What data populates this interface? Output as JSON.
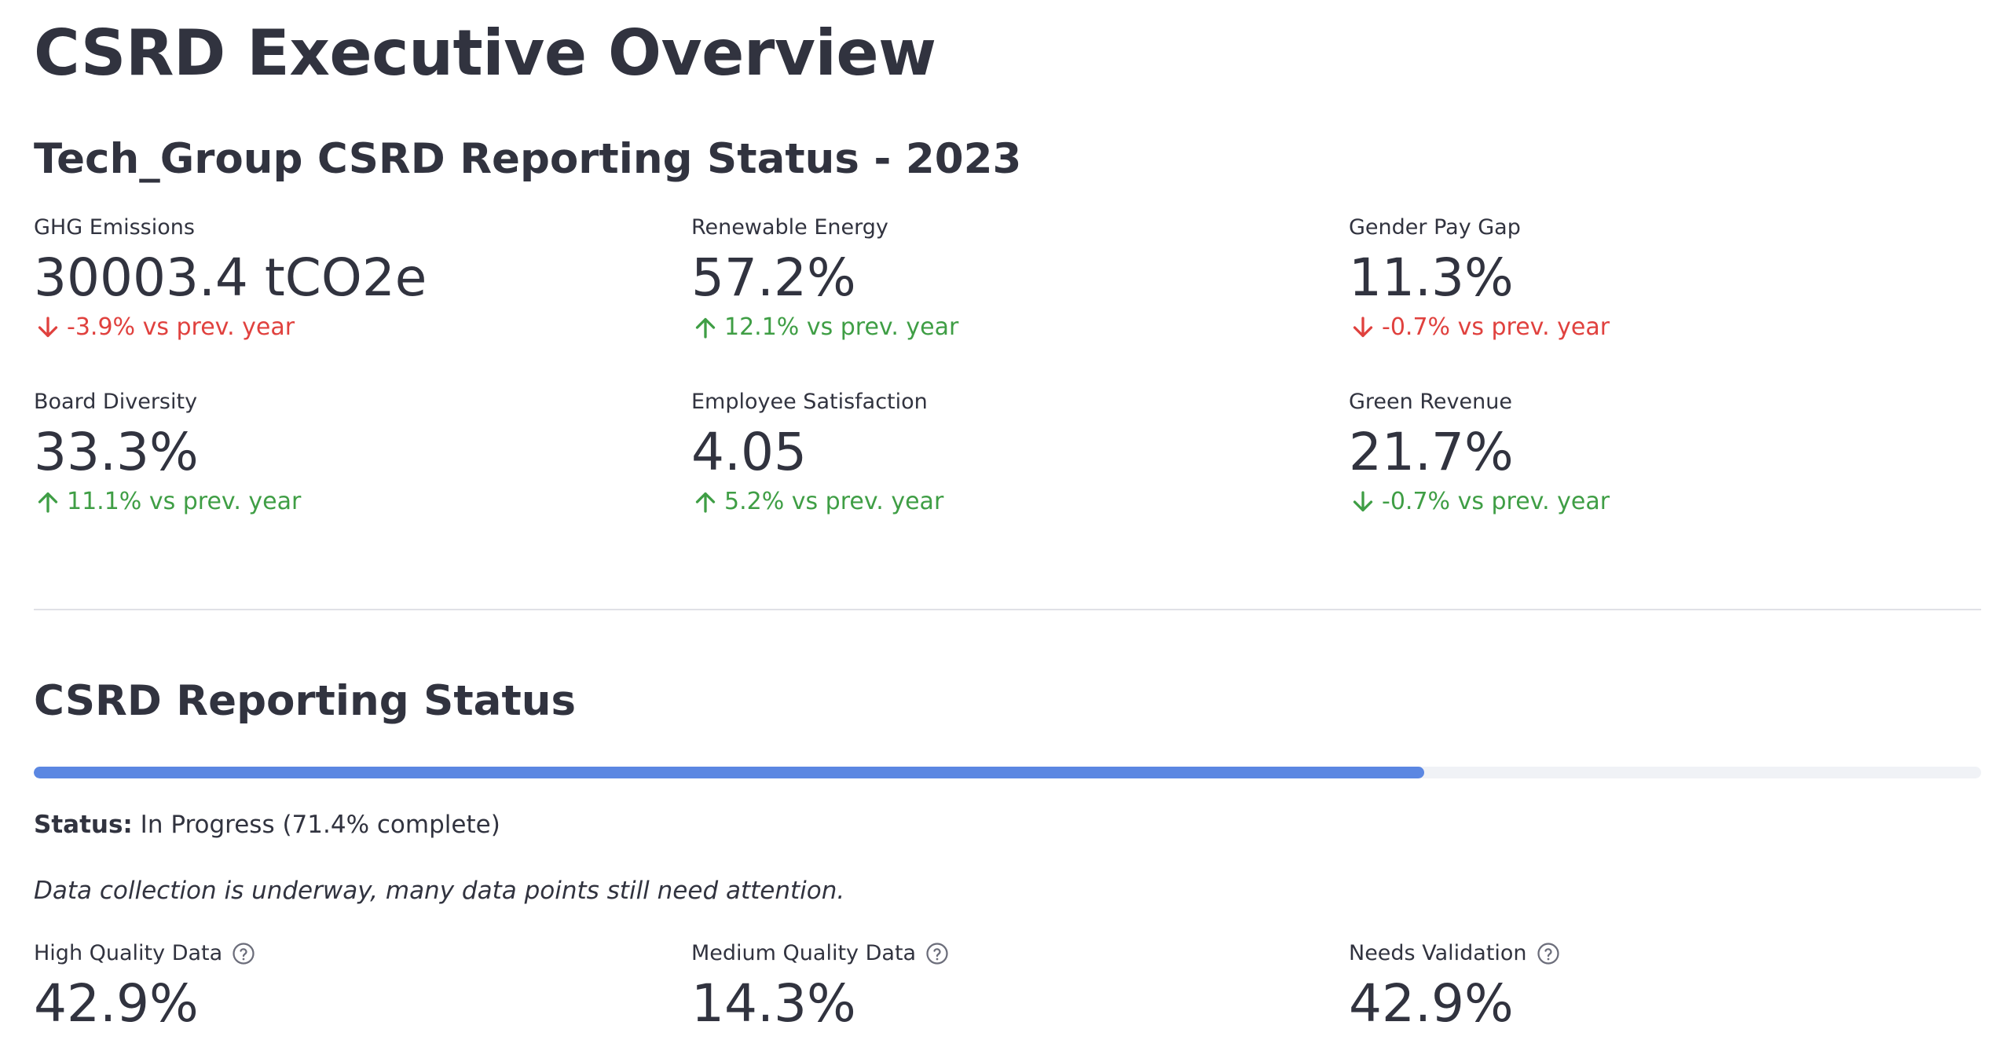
{
  "page": {
    "title": "CSRD Executive Overview",
    "subtitle": "Tech_Group CSRD Reporting Status - 2023"
  },
  "colors": {
    "text": "#31333f",
    "positive": "#3f9e45",
    "negative": "#e0413e",
    "progress_fill": "#5b87e2",
    "progress_track": "#f0f2f6",
    "divider": "#e0e1e6"
  },
  "metrics": [
    {
      "label": "GHG Emissions",
      "value": "30003.4 tCO2e",
      "delta": "-3.9% vs prev. year",
      "direction": "down",
      "color": "#e0413e",
      "icon": "arrow-down-icon"
    },
    {
      "label": "Renewable Energy",
      "value": "57.2%",
      "delta": "12.1% vs prev. year",
      "direction": "up",
      "color": "#3f9e45",
      "icon": "arrow-up-icon"
    },
    {
      "label": "Gender Pay Gap",
      "value": "11.3%",
      "delta": "-0.7% vs prev. year",
      "direction": "down",
      "color": "#e0413e",
      "icon": "arrow-down-icon"
    },
    {
      "label": "Board Diversity",
      "value": "33.3%",
      "delta": "11.1% vs prev. year",
      "direction": "up",
      "color": "#3f9e45",
      "icon": "arrow-up-icon"
    },
    {
      "label": "Employee Satisfaction",
      "value": "4.05",
      "delta": "5.2% vs prev. year",
      "direction": "up",
      "color": "#3f9e45",
      "icon": "arrow-up-icon"
    },
    {
      "label": "Green Revenue",
      "value": "21.7%",
      "delta": "-0.7% vs prev. year",
      "direction": "down",
      "color": "#3f9e45",
      "icon": "arrow-down-icon"
    }
  ],
  "reporting": {
    "section_title": "CSRD Reporting Status",
    "progress_percent": 71.4,
    "status_label": "Status:",
    "status_text": "In Progress (71.4% complete)",
    "note": "Data collection is underway, many data points still need attention."
  },
  "quality": [
    {
      "label": "High Quality Data",
      "value": "42.9%",
      "icon": "help-circle-icon"
    },
    {
      "label": "Medium Quality Data",
      "value": "14.3%",
      "icon": "help-circle-icon"
    },
    {
      "label": "Needs Validation",
      "value": "42.9%",
      "icon": "help-circle-icon"
    }
  ]
}
